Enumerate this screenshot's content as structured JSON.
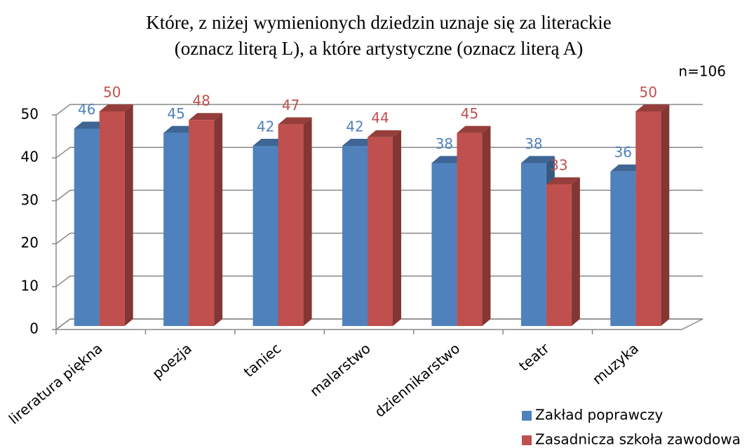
{
  "chart_data": {
    "type": "bar3d",
    "title": [
      "Które, z niżej wymienionych dziedzin uznaje się za literackie",
      "(oznacz literą L), a które artystyczne (oznacz literą A)"
    ],
    "annotation": "n=106",
    "categories": [
      "lireratura piękna",
      "poezja",
      "taniec",
      "malarstwo",
      "dziennikarstwo",
      "teatr",
      "muzyka"
    ],
    "series": [
      {
        "name": "Zakład poprawczy",
        "color": "#4f81bd",
        "values": [
          46,
          45,
          42,
          42,
          38,
          38,
          36
        ]
      },
      {
        "name": "Zasadnicza szkoła zawodowa",
        "color": "#c0504d",
        "values": [
          50,
          48,
          47,
          44,
          45,
          33,
          50
        ]
      }
    ],
    "ylim": [
      0,
      50
    ],
    "yticks": [
      0,
      10,
      20,
      30,
      40,
      50
    ],
    "grid": true,
    "legend": "bottom-right"
  }
}
